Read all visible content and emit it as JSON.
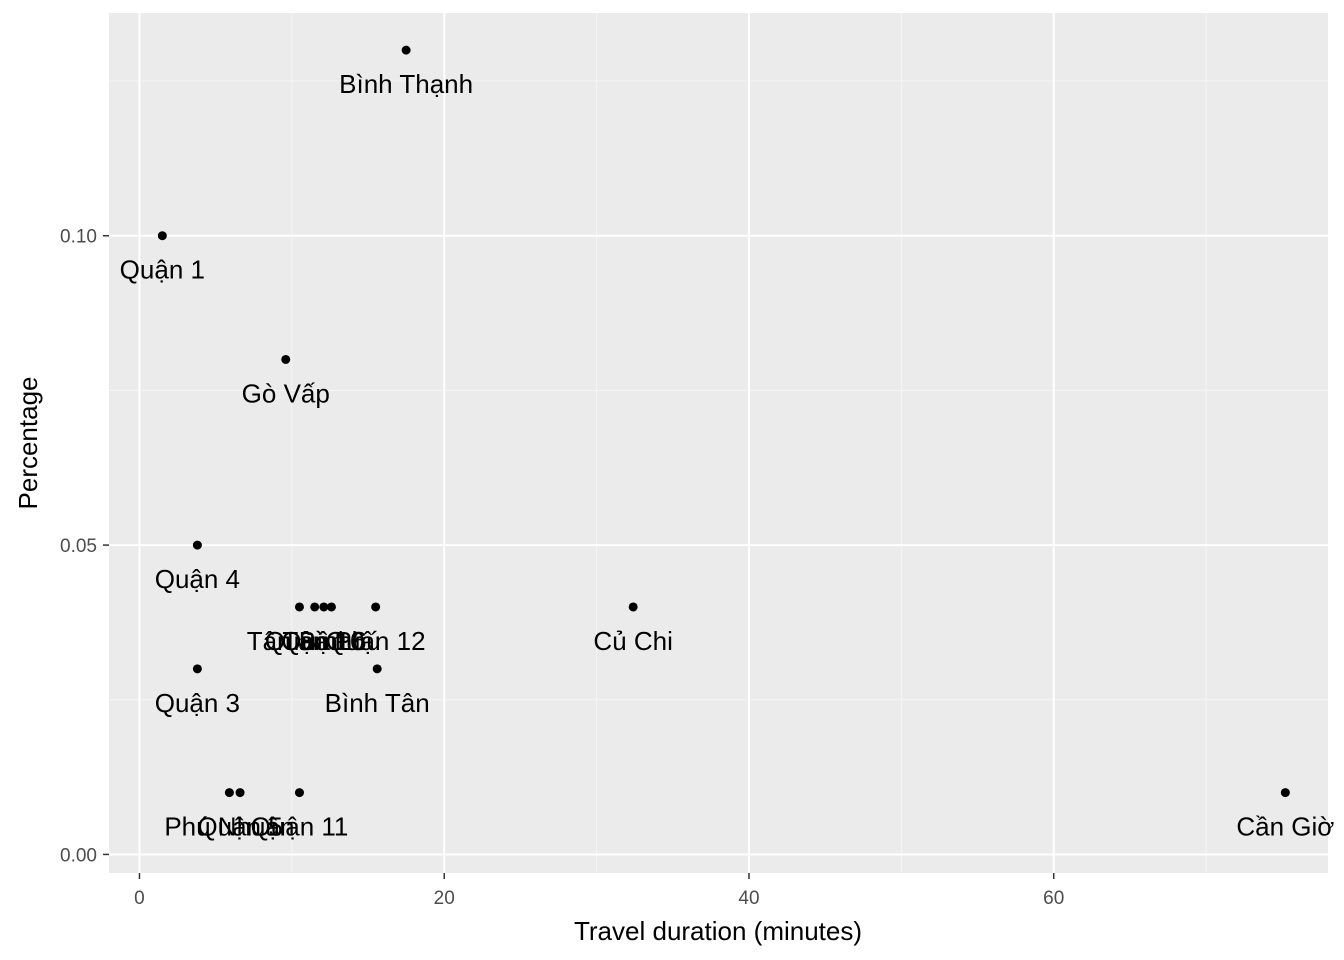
{
  "chart_data": {
    "type": "scatter",
    "title": "",
    "xlabel": "Travel duration (minutes)",
    "ylabel": "Percentage",
    "xlim": [
      -2,
      78
    ],
    "ylim": [
      -0.003,
      0.136
    ],
    "x_ticks": [
      {
        "value": 0,
        "label": "0"
      },
      {
        "value": 20,
        "label": "20"
      },
      {
        "value": 40,
        "label": "40"
      },
      {
        "value": 60,
        "label": "60"
      }
    ],
    "y_ticks": [
      {
        "value": 0.0,
        "label": "0.00"
      },
      {
        "value": 0.05,
        "label": "0.05"
      },
      {
        "value": 0.1,
        "label": "0.10"
      }
    ],
    "grid": true,
    "points": [
      {
        "label": "Bình Thạnh",
        "x": 17.5,
        "y": 0.13
      },
      {
        "label": "Quận 1",
        "x": 1.5,
        "y": 0.1
      },
      {
        "label": "Gò Vấp",
        "x": 9.6,
        "y": 0.08
      },
      {
        "label": "Quận 4",
        "x": 3.8,
        "y": 0.05
      },
      {
        "label": "Tân Bình",
        "x": 10.5,
        "y": 0.04
      },
      {
        "label": "Quận 10",
        "x": 11.5,
        "y": 0.04
      },
      {
        "label": "Quận 6",
        "x": 12.1,
        "y": 0.04
      },
      {
        "label": "Tân Phú",
        "x": 12.6,
        "y": 0.04
      },
      {
        "label": "Quận 12",
        "x": 15.5,
        "y": 0.04
      },
      {
        "label": "Củ Chi",
        "x": 32.4,
        "y": 0.04
      },
      {
        "label": "Quận 3",
        "x": 3.8,
        "y": 0.03
      },
      {
        "label": "Bình Tân",
        "x": 15.6,
        "y": 0.03
      },
      {
        "label": "Phú Nhuận",
        "x": 5.9,
        "y": 0.01
      },
      {
        "label": "Quận 5",
        "x": 6.6,
        "y": 0.01
      },
      {
        "label": "Quận 11",
        "x": 10.5,
        "y": 0.01
      },
      {
        "label": "Cần Giờ",
        "x": 75.2,
        "y": 0.01
      }
    ]
  },
  "colors": {
    "panel_background": "#ebebeb",
    "grid_major": "#ffffff",
    "grid_minor": "#f5f5f5",
    "point": "#000000",
    "tick_text": "#4d4d4d",
    "axis_tick": "#333333"
  }
}
